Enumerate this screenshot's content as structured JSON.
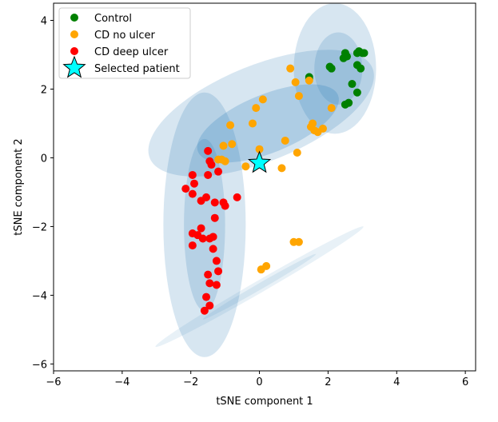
{
  "chart_data": {
    "type": "scatter",
    "title": "",
    "xlabel": "tSNE component 1",
    "ylabel": "tSNE component 2",
    "xlim": [
      -6,
      6.3
    ],
    "ylim": [
      -6.2,
      4.5
    ],
    "xticks": [
      -6,
      -4,
      -2,
      0,
      2,
      4,
      6
    ],
    "yticks": [
      -6,
      -4,
      -2,
      0,
      2,
      4
    ],
    "xtick_labels": [
      "−6",
      "−4",
      "−2",
      "0",
      "2",
      "4",
      "6"
    ],
    "ytick_labels": [
      "−6",
      "−4",
      "−2",
      "0",
      "2",
      "4"
    ],
    "grid": false,
    "legend_placement": "top-left",
    "series": [
      {
        "name": "Control",
        "color": "#008000",
        "marker": "circle",
        "points": [
          [
            2.05,
            2.65
          ],
          [
            2.1,
            2.6
          ],
          [
            2.45,
            2.9
          ],
          [
            2.5,
            3.05
          ],
          [
            2.55,
            2.95
          ],
          [
            2.85,
            3.05
          ],
          [
            2.9,
            3.1
          ],
          [
            3.0,
            3.05
          ],
          [
            3.05,
            3.05
          ],
          [
            2.85,
            2.7
          ],
          [
            2.95,
            2.6
          ],
          [
            2.7,
            2.15
          ],
          [
            2.85,
            1.9
          ],
          [
            2.6,
            1.6
          ],
          [
            2.5,
            1.55
          ],
          [
            1.45,
            2.35
          ],
          [
            1.45,
            2.3
          ]
        ]
      },
      {
        "name": "CD no ulcer",
        "color": "#FFA500",
        "marker": "circle",
        "points": [
          [
            0.9,
            2.6
          ],
          [
            1.05,
            2.2
          ],
          [
            1.45,
            2.25
          ],
          [
            1.15,
            1.8
          ],
          [
            2.1,
            1.45
          ],
          [
            0.1,
            1.7
          ],
          [
            -0.1,
            1.45
          ],
          [
            -0.2,
            1.0
          ],
          [
            -0.85,
            0.95
          ],
          [
            1.5,
            0.9
          ],
          [
            1.55,
            1.0
          ],
          [
            1.6,
            0.8
          ],
          [
            1.7,
            0.75
          ],
          [
            1.85,
            0.85
          ],
          [
            0.75,
            0.5
          ],
          [
            -1.05,
            0.35
          ],
          [
            -0.8,
            0.4
          ],
          [
            0.0,
            0.25
          ],
          [
            1.1,
            0.15
          ],
          [
            -1.1,
            -0.05
          ],
          [
            -1.2,
            -0.05
          ],
          [
            -1.0,
            -0.1
          ],
          [
            -0.4,
            -0.25
          ],
          [
            0.65,
            -0.3
          ],
          [
            1.0,
            -2.45
          ],
          [
            1.15,
            -2.45
          ],
          [
            0.2,
            -3.15
          ],
          [
            0.05,
            -3.25
          ]
        ]
      },
      {
        "name": "CD deep ulcer",
        "color": "#FF0000",
        "marker": "circle",
        "points": [
          [
            -1.5,
            0.2
          ],
          [
            -1.45,
            -0.1
          ],
          [
            -1.4,
            -0.2
          ],
          [
            -1.2,
            -0.4
          ],
          [
            -1.95,
            -0.5
          ],
          [
            -1.5,
            -0.5
          ],
          [
            -1.9,
            -0.75
          ],
          [
            -2.15,
            -0.9
          ],
          [
            -1.95,
            -1.05
          ],
          [
            -1.55,
            -1.15
          ],
          [
            -1.7,
            -1.25
          ],
          [
            -1.3,
            -1.3
          ],
          [
            -1.05,
            -1.3
          ],
          [
            -1.0,
            -1.4
          ],
          [
            -0.65,
            -1.15
          ],
          [
            -1.3,
            -1.75
          ],
          [
            -1.7,
            -2.05
          ],
          [
            -1.95,
            -2.2
          ],
          [
            -1.8,
            -2.25
          ],
          [
            -1.65,
            -2.35
          ],
          [
            -1.45,
            -2.35
          ],
          [
            -1.35,
            -2.3
          ],
          [
            -1.95,
            -2.55
          ],
          [
            -1.35,
            -2.65
          ],
          [
            -1.25,
            -3.0
          ],
          [
            -1.2,
            -3.3
          ],
          [
            -1.5,
            -3.4
          ],
          [
            -1.45,
            -3.65
          ],
          [
            -1.25,
            -3.7
          ],
          [
            -1.55,
            -4.05
          ],
          [
            -1.45,
            -4.3
          ],
          [
            -1.6,
            -4.45
          ]
        ]
      },
      {
        "name": "Selected patient",
        "color": "#00FFFF",
        "marker": "star",
        "points": [
          [
            0.0,
            -0.15
          ]
        ]
      }
    ],
    "ellipses": [
      {
        "cx": 0.05,
        "cy": 1.3,
        "width": 7.0,
        "height": 2.8,
        "angle_deg": 22,
        "opacity": 0.18
      },
      {
        "cx": 0.25,
        "cy": 1.0,
        "width": 4.4,
        "height": 1.7,
        "angle_deg": 22,
        "opacity": 0.22
      },
      {
        "cx": 2.2,
        "cy": 2.6,
        "width": 2.4,
        "height": 3.8,
        "angle_deg": 0,
        "opacity": 0.18
      },
      {
        "cx": 2.3,
        "cy": 2.6,
        "width": 1.4,
        "height": 2.1,
        "angle_deg": 0,
        "opacity": 0.18
      },
      {
        "cx": -1.6,
        "cy": -1.95,
        "width": 2.4,
        "height": 7.7,
        "angle_deg": 0,
        "opacity": 0.18
      },
      {
        "cx": -1.6,
        "cy": -1.95,
        "width": 1.2,
        "height": 5.0,
        "angle_deg": 0,
        "opacity": 0.18
      },
      {
        "cx": 0.0,
        "cy": -3.75,
        "width": 7.0,
        "height": 0.35,
        "angle_deg": 30,
        "opacity": 0.1
      },
      {
        "cx": 0.0,
        "cy": -3.75,
        "width": 3.8,
        "height": 0.18,
        "angle_deg": 30,
        "opacity": 0.1
      }
    ],
    "ellipse_color": "#1f77b4"
  }
}
